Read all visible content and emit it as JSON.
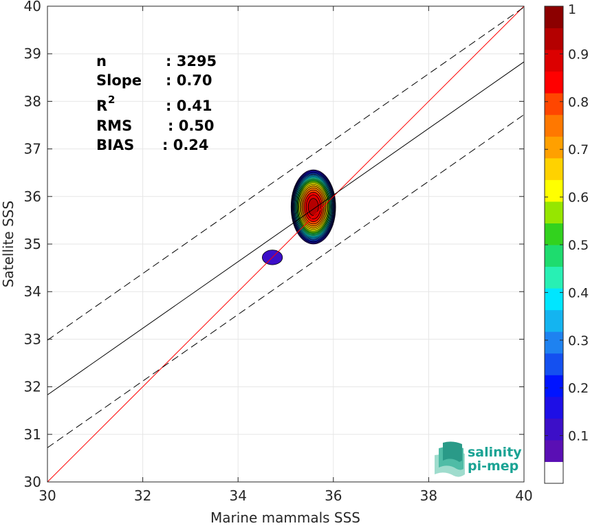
{
  "chart_data": {
    "type": "contour",
    "xlabel": "Marine mammals SSS",
    "ylabel": "Satellite SSS",
    "xlim": [
      30,
      40
    ],
    "ylim": [
      30,
      40
    ],
    "xticks": [
      30,
      32,
      34,
      36,
      38,
      40
    ],
    "yticks": [
      30,
      31,
      32,
      33,
      34,
      35,
      36,
      37,
      38,
      39,
      40
    ],
    "grid": true,
    "stats": [
      {
        "label": "n",
        "value": ": 3295"
      },
      {
        "label": "Slope",
        "value": ": 0.70"
      },
      {
        "label": "R",
        "sup": "2",
        "value": ": 0.41"
      },
      {
        "label": "RMS",
        "value": ": 0.50"
      },
      {
        "label": "BIAS",
        "value": ": 0.24"
      }
    ],
    "lines": {
      "identity": {
        "slope": 1.0,
        "intercept": 0.0,
        "color": "#ff0000",
        "style": "solid"
      },
      "regression": {
        "slope": 0.7,
        "intercept": 10.83,
        "color": "#000000",
        "style": "solid"
      },
      "upper_envelope": {
        "slope": 0.7,
        "intercept": 11.98,
        "color": "#000000",
        "style": "dashed"
      },
      "lower_envelope": {
        "slope": 0.7,
        "intercept": 9.72,
        "color": "#000000",
        "style": "dashed"
      }
    },
    "density_peaks": [
      {
        "x": 35.58,
        "y": 35.78,
        "rx": 0.48,
        "ry": 0.8,
        "peak": 1.0
      },
      {
        "x": 34.72,
        "y": 34.72,
        "rx": 0.3,
        "ry": 0.22,
        "peak": 0.1
      }
    ],
    "contour_levels": [
      0.05,
      0.1,
      0.15,
      0.2,
      0.25,
      0.3,
      0.35,
      0.4,
      0.45,
      0.5,
      0.55,
      0.6,
      0.65,
      0.7,
      0.75,
      0.8,
      0.85,
      0.9,
      0.95
    ],
    "colorbar": {
      "min": 0,
      "max": 1,
      "ticks": [
        0.1,
        0.2,
        0.3,
        0.4,
        0.5,
        0.6,
        0.7,
        0.8,
        0.9,
        1
      ],
      "tick_labels": [
        "0.1",
        "0.2",
        "0.3",
        "0.4",
        "0.5",
        "0.6",
        "0.7",
        "0.8",
        "0.9",
        "1"
      ],
      "colors": [
        "#ffffff",
        "#5a0fb4",
        "#3c0fc8",
        "#1e0fe6",
        "#0014ff",
        "#1450f0",
        "#1e82f0",
        "#14b4f0",
        "#00e6ff",
        "#28f0b4",
        "#1edc6e",
        "#32d21e",
        "#96e600",
        "#ffff00",
        "#ffd200",
        "#ffa000",
        "#ff7800",
        "#ff4600",
        "#ff0000",
        "#dc0000",
        "#b40000",
        "#8c0000"
      ]
    }
  },
  "logo": {
    "line1": "salinity",
    "line2": "pi-mep",
    "color": "#1aa394"
  }
}
